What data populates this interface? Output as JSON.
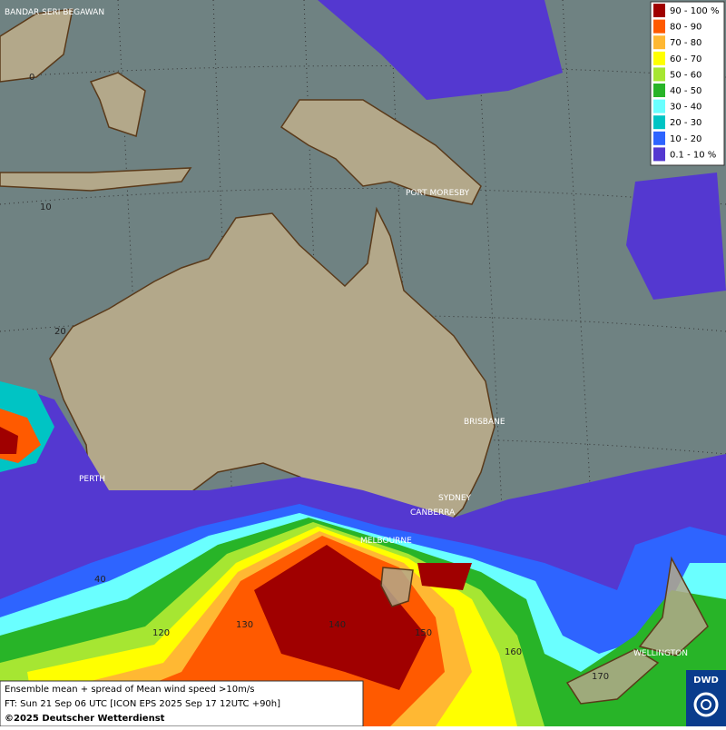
{
  "legend": {
    "items": [
      {
        "label": "90 - 100 %",
        "color": "#a00000"
      },
      {
        "label": "80 - 90",
        "color": "#ff5a00"
      },
      {
        "label": "70 - 80",
        "color": "#ffb833"
      },
      {
        "label": "60 - 70",
        "color": "#ffff00"
      },
      {
        "label": "50 - 60",
        "color": "#a6e632"
      },
      {
        "label": "40 - 50",
        "color": "#28b428"
      },
      {
        "label": "30 - 40",
        "color": "#6affff"
      },
      {
        "label": "20 - 30",
        "color": "#00c4c4"
      },
      {
        "label": "10 - 20",
        "color": "#2e64ff"
      },
      {
        "label": "0.1 - 10 %",
        "color": "#5438d0"
      }
    ]
  },
  "cities": [
    "BANDAR SERI BEGAWAN",
    "PORT MORESBY",
    "BRISBANE",
    "SYDNEY",
    "CANBERRA",
    "MELBOURNE",
    "PERTH",
    "WELLINGTON"
  ],
  "grid_labels": {
    "latitudes": [
      "0",
      "10",
      "20",
      "40"
    ],
    "longitudes": [
      "120",
      "130",
      "140",
      "150",
      "160",
      "170"
    ]
  },
  "footer": {
    "line1": "Ensemble mean + spread of Mean wind speed >10m/s",
    "line2": "FT: Sun 21 Sep 06 UTC [ICON EPS 2025 Sep 17 12UTC +90h]",
    "copyright": "©2025 Deutscher Wetterdienst"
  },
  "logo": "DWD"
}
